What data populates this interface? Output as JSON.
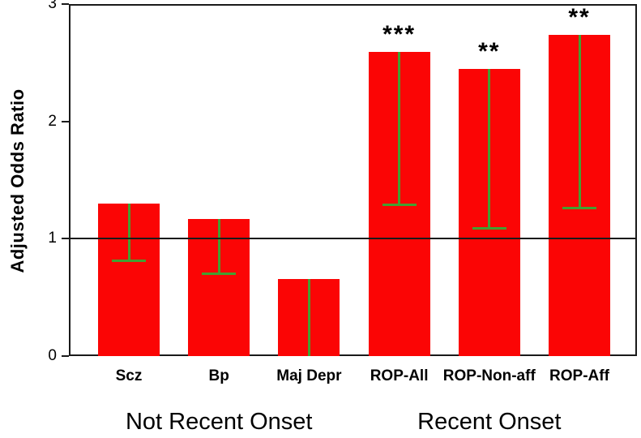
{
  "chart_data": {
    "type": "bar",
    "title": "",
    "xlabel": "",
    "ylabel": "Adjusted Odds Ratio",
    "ylim": [
      0,
      3
    ],
    "yticks": [
      "0",
      "1",
      "2",
      "3"
    ],
    "reference_line": 1.0,
    "grid": false,
    "legend": "none",
    "bar_color": "#fb0505",
    "error_bar_color": "#42a032",
    "axis_color": "#1a1a1a",
    "categories": [
      "Scz",
      "Bp",
      "Maj Depr",
      "ROP-All",
      "ROP-Non-aff",
      "ROP-Aff"
    ],
    "values": [
      1.3,
      1.17,
      0.66,
      2.59,
      2.45,
      2.74
    ],
    "error_low": [
      0.81,
      0.7,
      0.0,
      1.29,
      1.09,
      1.26
    ],
    "significance": [
      "",
      "",
      "",
      "***",
      "**",
      "**"
    ],
    "groups": [
      {
        "label": "Not Recent Onset",
        "start": 0,
        "end": 2
      },
      {
        "label": "Recent Onset",
        "start": 3,
        "end": 5
      }
    ]
  }
}
